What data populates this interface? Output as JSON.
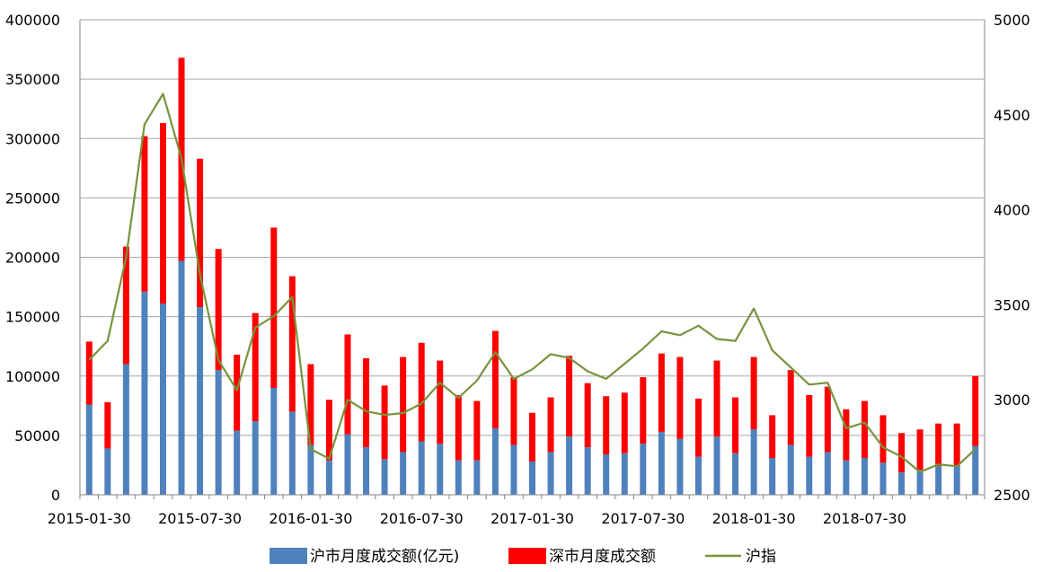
{
  "chart_data": {
    "type": "bar",
    "stacked": true,
    "x": [
      "2015-01-30",
      "2015-02-28",
      "2015-03-30",
      "2015-04-30",
      "2015-05-30",
      "2015-06-30",
      "2015-07-30",
      "2015-08-30",
      "2015-09-30",
      "2015-10-30",
      "2015-11-30",
      "2015-12-30",
      "2016-01-30",
      "2016-02-28",
      "2016-03-30",
      "2016-04-30",
      "2016-05-30",
      "2016-06-30",
      "2016-07-30",
      "2016-08-30",
      "2016-09-30",
      "2016-10-30",
      "2016-11-30",
      "2016-12-30",
      "2017-01-30",
      "2017-02-28",
      "2017-03-30",
      "2017-04-30",
      "2017-05-30",
      "2017-06-30",
      "2017-07-30",
      "2017-08-30",
      "2017-09-30",
      "2017-10-30",
      "2017-11-30",
      "2017-12-30",
      "2018-01-30",
      "2018-02-28",
      "2018-03-30",
      "2018-04-30",
      "2018-05-30",
      "2018-06-30",
      "2018-07-30",
      "2018-08-30",
      "2018-09-30",
      "2018-10-30",
      "2018-11-30",
      "2018-12-30",
      "2019-01-30"
    ],
    "xticks": [
      "2015-01-30",
      "2015-07-30",
      "2016-01-30",
      "2016-07-30",
      "2017-01-30",
      "2017-07-30",
      "2018-01-30",
      "2018-07-30"
    ],
    "series": [
      {
        "name": "沪市月度成交额(亿元)",
        "axis": "left",
        "kind": "bar",
        "color": "#4f81bd",
        "values": [
          76000,
          39000,
          110000,
          171000,
          161000,
          197000,
          158000,
          105000,
          54000,
          62000,
          90000,
          70000,
          42000,
          29000,
          51000,
          40000,
          30000,
          36000,
          45000,
          43000,
          29000,
          29000,
          56000,
          42000,
          28000,
          36000,
          49000,
          40000,
          34000,
          35000,
          43000,
          53000,
          47000,
          32000,
          49000,
          35000,
          55000,
          31000,
          42000,
          32000,
          36000,
          29000,
          31000,
          27000,
          19000,
          21000,
          24000,
          24000,
          41000
        ]
      },
      {
        "name": "深市月度成交额",
        "axis": "left",
        "kind": "bar",
        "color": "#ff0000",
        "values": [
          53000,
          39000,
          99000,
          131000,
          152000,
          171000,
          125000,
          102000,
          64000,
          91000,
          135000,
          114000,
          68000,
          51000,
          84000,
          75000,
          62000,
          80000,
          83000,
          70000,
          55000,
          50000,
          82000,
          57000,
          41000,
          46000,
          68000,
          54000,
          49000,
          51000,
          56000,
          66000,
          69000,
          49000,
          64000,
          47000,
          61000,
          36000,
          63000,
          52000,
          55000,
          43000,
          48000,
          40000,
          33000,
          34000,
          36000,
          36000,
          59000
        ]
      },
      {
        "name": "沪指",
        "axis": "right",
        "kind": "line",
        "color": "#77933c",
        "values": [
          3210,
          3310,
          3750,
          4450,
          4610,
          4270,
          3660,
          3210,
          3050,
          3380,
          3440,
          3540,
          2740,
          2690,
          3000,
          2940,
          2920,
          2930,
          2980,
          3090,
          3010,
          3100,
          3250,
          3110,
          3160,
          3240,
          3220,
          3150,
          3110,
          3190,
          3270,
          3360,
          3340,
          3390,
          3320,
          3310,
          3480,
          3260,
          3170,
          3080,
          3090,
          2850,
          2880,
          2750,
          2700,
          2620,
          2660,
          2650,
          2740
        ]
      }
    ],
    "ylim_left": [
      0,
      400000
    ],
    "yticks_left": [
      "0",
      "50000",
      "100000",
      "150000",
      "200000",
      "250000",
      "300000",
      "350000",
      "400000"
    ],
    "ylim_right": [
      2500,
      5000
    ],
    "yticks_right": [
      "2500",
      "3000",
      "3500",
      "4000",
      "4500",
      "5000"
    ],
    "grid": true,
    "legend_position": "bottom",
    "legend": [
      "沪市月度成交额(亿元)",
      "深市月度成交额",
      "沪指"
    ]
  }
}
